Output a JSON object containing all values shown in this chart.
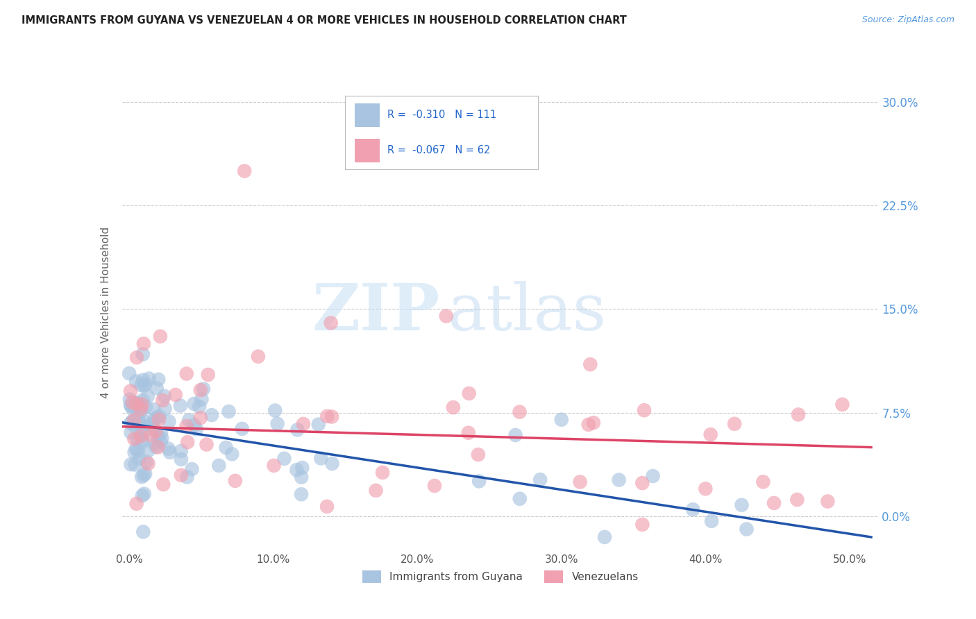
{
  "title": "IMMIGRANTS FROM GUYANA VS VENEZUELAN 4 OR MORE VEHICLES IN HOUSEHOLD CORRELATION CHART",
  "source": "Source: ZipAtlas.com",
  "xlabel_ticks": [
    "0.0%",
    "10.0%",
    "20.0%",
    "30.0%",
    "40.0%",
    "50.0%"
  ],
  "xlabel_vals": [
    0.0,
    10.0,
    20.0,
    30.0,
    40.0,
    50.0
  ],
  "ylabel_ticks": [
    "0.0%",
    "7.5%",
    "15.0%",
    "22.5%",
    "30.0%"
  ],
  "ylabel_vals": [
    0.0,
    7.5,
    15.0,
    22.5,
    30.0
  ],
  "xlim": [
    -0.5,
    52
  ],
  "ylim": [
    -2.5,
    32
  ],
  "ylabel": "4 or more Vehicles in Household",
  "legend_blue_label": "Immigrants from Guyana",
  "legend_pink_label": "Venezuelans",
  "R_blue": -0.31,
  "N_blue": 111,
  "R_pink": -0.067,
  "N_pink": 62,
  "blue_color": "#a8c4e0",
  "pink_color": "#f0a0b0",
  "blue_line_color": "#2255aa",
  "pink_line_color": "#dd4466",
  "watermark_zip": "ZIP",
  "watermark_atlas": "atlas",
  "background_color": "#ffffff",
  "grid_color": "#cccccc",
  "blue_line_start_y": 6.8,
  "blue_line_end_y": -1.5,
  "pink_line_start_y": 6.5,
  "pink_line_end_y": 5.0
}
